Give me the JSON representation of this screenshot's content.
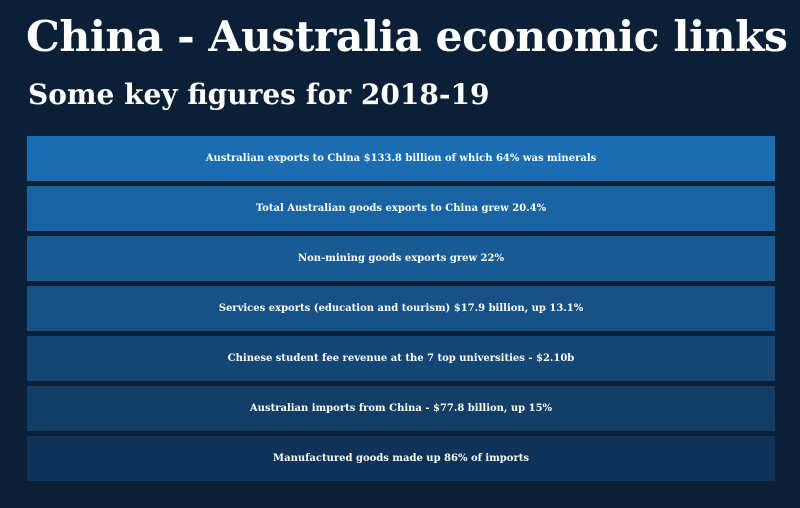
{
  "header": {
    "title": "China - Australia economic links",
    "subtitle": "Some key figures for 2018-19"
  },
  "facts": [
    {
      "text": "Australian exports to China  $133.8 billion of which 64% was minerals",
      "color": "#1b6cb0"
    },
    {
      "text": "Total Australian goods exports to China grew 20.4%",
      "color": "#1a63a2"
    },
    {
      "text": "Non-mining goods exports grew 22%",
      "color": "#185a93"
    },
    {
      "text": "Services exports (education and tourism)  $17.9 billion, up 13.1%",
      "color": "#165084"
    },
    {
      "text": "Chinese student fee revenue at the 7 top universities -  $2.10b",
      "color": "#144675"
    },
    {
      "text": "Australian imports from China - $77.8 billion, up 15%",
      "color": "#123d66"
    },
    {
      "text": "Manufactured goods made up 86% of imports",
      "color": "#0f3358"
    }
  ]
}
